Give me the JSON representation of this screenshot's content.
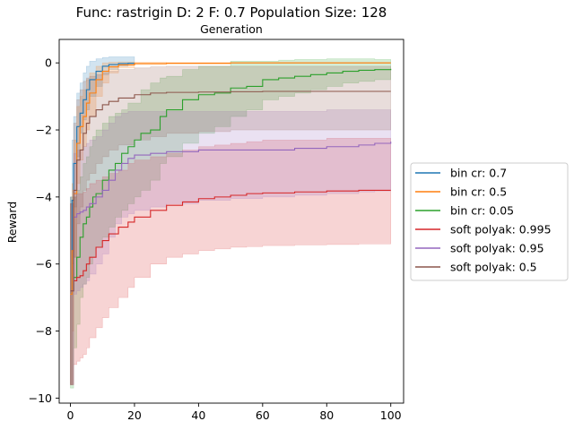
{
  "chart_data": {
    "type": "line",
    "title": "Func: rastrigin D: 2 F: 0.7 Population Size: 128",
    "subtitle": "Generation",
    "xlabel": "",
    "ylabel": "Reward",
    "xlim": [
      -3.5,
      104
    ],
    "ylim": [
      -10.15,
      0.7
    ],
    "xticks": [
      0,
      20,
      40,
      60,
      80,
      100
    ],
    "yticks": [
      0,
      -2,
      -4,
      -6,
      -8,
      -10
    ],
    "grid": false,
    "legend_position": "right",
    "series": [
      {
        "name": "bin cr: 0.7",
        "color": "#1f77b4",
        "x": [
          0,
          0.5,
          1,
          2,
          3,
          4,
          5,
          6,
          8,
          10,
          12,
          15,
          18,
          20
        ],
        "y": [
          -6.9,
          -4.1,
          -3.0,
          -1.9,
          -1.5,
          -1.1,
          -0.8,
          -0.5,
          -0.25,
          -0.1,
          -0.05,
          -0.02,
          -0.01,
          0
        ],
        "lower": [
          -9.6,
          -6.0,
          -4.3,
          -2.8,
          -2.1,
          -1.7,
          -1.4,
          -1.0,
          -0.7,
          -0.35,
          -0.2,
          -0.1,
          -0.05,
          -0.03
        ],
        "upper": [
          -4.0,
          -2.3,
          -1.6,
          -0.9,
          -0.6,
          -0.3,
          -0.1,
          0.05,
          0.12,
          0.16,
          0.18,
          0.18,
          0.18,
          0.15
        ]
      },
      {
        "name": "bin cr: 0.5",
        "color": "#ff7f0e",
        "x": [
          0,
          0.5,
          1,
          2,
          3,
          4,
          5,
          6,
          8,
          10,
          12,
          15,
          20,
          30,
          50,
          100
        ],
        "y": [
          -6.9,
          -5.6,
          -3.9,
          -2.4,
          -1.9,
          -1.6,
          -1.2,
          -0.9,
          -0.5,
          -0.25,
          -0.12,
          -0.06,
          -0.02,
          -0.01,
          0,
          0
        ],
        "lower": [
          -9.6,
          -8.0,
          -5.8,
          -3.6,
          -2.9,
          -2.5,
          -2.0,
          -1.6,
          -1.0,
          -0.6,
          -0.3,
          -0.15,
          -0.05,
          -0.03,
          -0.01,
          -0.01
        ],
        "upper": [
          -4.2,
          -3.6,
          -2.3,
          -1.3,
          -1.0,
          -0.8,
          -0.5,
          -0.3,
          -0.1,
          0,
          0.02,
          0.03,
          0.02,
          0.01,
          0.01,
          0.01
        ]
      },
      {
        "name": "bin cr: 0.05",
        "color": "#2ca02c",
        "x": [
          0,
          1,
          2,
          3,
          4,
          5,
          6,
          7,
          8,
          10,
          12,
          14,
          16,
          18,
          20,
          22,
          25,
          28,
          30,
          35,
          40,
          45,
          50,
          55,
          60,
          65,
          70,
          75,
          80,
          85,
          90,
          95,
          100
        ],
        "y": [
          -6.8,
          -6.4,
          -5.8,
          -5.2,
          -4.8,
          -4.6,
          -4.3,
          -4.0,
          -3.9,
          -3.5,
          -3.2,
          -3.0,
          -2.7,
          -2.5,
          -2.3,
          -2.1,
          -2.0,
          -1.6,
          -1.4,
          -1.1,
          -0.95,
          -0.9,
          -0.75,
          -0.7,
          -0.5,
          -0.45,
          -0.4,
          -0.35,
          -0.3,
          -0.25,
          -0.22,
          -0.2,
          -0.18
        ],
        "lower": [
          -9.7,
          -8.5,
          -7.8,
          -7.0,
          -6.6,
          -6.4,
          -6.0,
          -5.8,
          -5.5,
          -5.2,
          -4.9,
          -4.6,
          -4.4,
          -4.2,
          -4.0,
          -3.8,
          -3.5,
          -3.0,
          -2.8,
          -2.4,
          -2.1,
          -1.9,
          -1.6,
          -1.4,
          -1.1,
          -1.0,
          -0.9,
          -0.8,
          -0.7,
          -0.6,
          -0.55,
          -0.5,
          -0.45
        ],
        "upper": [
          -4.0,
          -4.0,
          -3.8,
          -3.4,
          -3.0,
          -2.8,
          -2.5,
          -2.2,
          -2.0,
          -1.8,
          -1.6,
          -1.5,
          -1.4,
          -1.2,
          -1.2,
          -0.8,
          -0.6,
          -0.45,
          -0.4,
          -0.2,
          -0.1,
          -0.1,
          0.05,
          0.05,
          0.05,
          0.08,
          0.1,
          0.1,
          0.12,
          0.12,
          0.12,
          0.1,
          0.1
        ]
      },
      {
        "name": "soft polyak: 0.995",
        "color": "#d62728",
        "x": [
          0,
          1,
          2,
          3,
          4,
          5,
          6,
          8,
          10,
          12,
          15,
          18,
          20,
          25,
          30,
          35,
          40,
          45,
          50,
          55,
          60,
          70,
          80,
          90,
          100
        ],
        "y": [
          -6.8,
          -6.5,
          -6.4,
          -6.35,
          -6.2,
          -6.0,
          -5.8,
          -5.5,
          -5.3,
          -5.1,
          -4.9,
          -4.75,
          -4.6,
          -4.4,
          -4.25,
          -4.15,
          -4.05,
          -4.0,
          -3.95,
          -3.9,
          -3.88,
          -3.85,
          -3.82,
          -3.8,
          -3.8
        ],
        "lower": [
          -9.6,
          -9.0,
          -8.9,
          -8.8,
          -8.7,
          -8.5,
          -8.2,
          -7.9,
          -7.6,
          -7.3,
          -7.0,
          -6.7,
          -6.4,
          -6.0,
          -5.8,
          -5.7,
          -5.6,
          -5.55,
          -5.5,
          -5.48,
          -5.45,
          -5.43,
          -5.42,
          -5.4,
          -5.4
        ],
        "upper": [
          -4.2,
          -4.0,
          -3.9,
          -3.9,
          -3.85,
          -3.75,
          -3.6,
          -3.5,
          -3.4,
          -3.3,
          -3.2,
          -3.0,
          -2.9,
          -2.8,
          -2.7,
          -2.6,
          -2.5,
          -2.45,
          -2.4,
          -2.35,
          -2.3,
          -2.3,
          -2.25,
          -2.25,
          -2.25
        ]
      },
      {
        "name": "soft polyak: 0.95",
        "color": "#9467bd",
        "x": [
          0,
          1,
          2,
          3,
          4,
          5,
          6,
          8,
          10,
          12,
          14,
          16,
          18,
          20,
          25,
          30,
          40,
          50,
          60,
          70,
          80,
          90,
          95,
          100
        ],
        "y": [
          -6.8,
          -4.6,
          -4.5,
          -4.45,
          -4.4,
          -4.3,
          -4.2,
          -4.0,
          -3.8,
          -3.5,
          -3.2,
          -3.0,
          -2.85,
          -2.75,
          -2.7,
          -2.65,
          -2.6,
          -2.6,
          -2.6,
          -2.55,
          -2.5,
          -2.45,
          -2.4,
          -2.35
        ],
        "lower": [
          -9.6,
          -6.9,
          -6.8,
          -6.7,
          -6.6,
          -6.5,
          -6.3,
          -6.0,
          -5.7,
          -5.2,
          -4.8,
          -4.6,
          -4.5,
          -4.4,
          -4.3,
          -4.2,
          -4.1,
          -4.05,
          -4.0,
          -3.95,
          -3.9,
          -3.85,
          -3.82,
          -3.8
        ],
        "upper": [
          -4.0,
          -2.7,
          -2.6,
          -2.6,
          -2.5,
          -2.4,
          -2.3,
          -2.2,
          -2.0,
          -1.8,
          -1.6,
          -1.5,
          -1.45,
          -1.45,
          -1.45,
          -1.45,
          -1.45,
          -1.45,
          -1.45,
          -1.45,
          -1.4,
          -1.4,
          -1.4,
          -1.4
        ]
      },
      {
        "name": "soft polyak: 0.5",
        "color": "#8c564b",
        "x": [
          0,
          1,
          2,
          3,
          4,
          5,
          6,
          8,
          10,
          12,
          15,
          20,
          25,
          30,
          40,
          50,
          60,
          80,
          100
        ],
        "y": [
          -6.8,
          -3.8,
          -2.9,
          -2.6,
          -2.1,
          -1.8,
          -1.6,
          -1.4,
          -1.25,
          -1.15,
          -1.05,
          -0.95,
          -0.9,
          -0.88,
          -0.87,
          -0.86,
          -0.85,
          -0.85,
          -0.85
        ],
        "lower": [
          -9.6,
          -5.8,
          -4.8,
          -4.3,
          -3.8,
          -3.5,
          -3.3,
          -3.0,
          -2.8,
          -2.6,
          -2.45,
          -2.3,
          -2.2,
          -2.1,
          -2.05,
          -2.0,
          -2.0,
          -2.0,
          -2.0
        ],
        "upper": [
          -4.2,
          -1.8,
          -1.1,
          -0.8,
          -0.55,
          -0.45,
          -0.4,
          -0.35,
          -0.3,
          -0.25,
          -0.2,
          -0.15,
          -0.12,
          -0.1,
          -0.1,
          -0.1,
          -0.1,
          -0.1,
          -0.1
        ]
      }
    ]
  }
}
